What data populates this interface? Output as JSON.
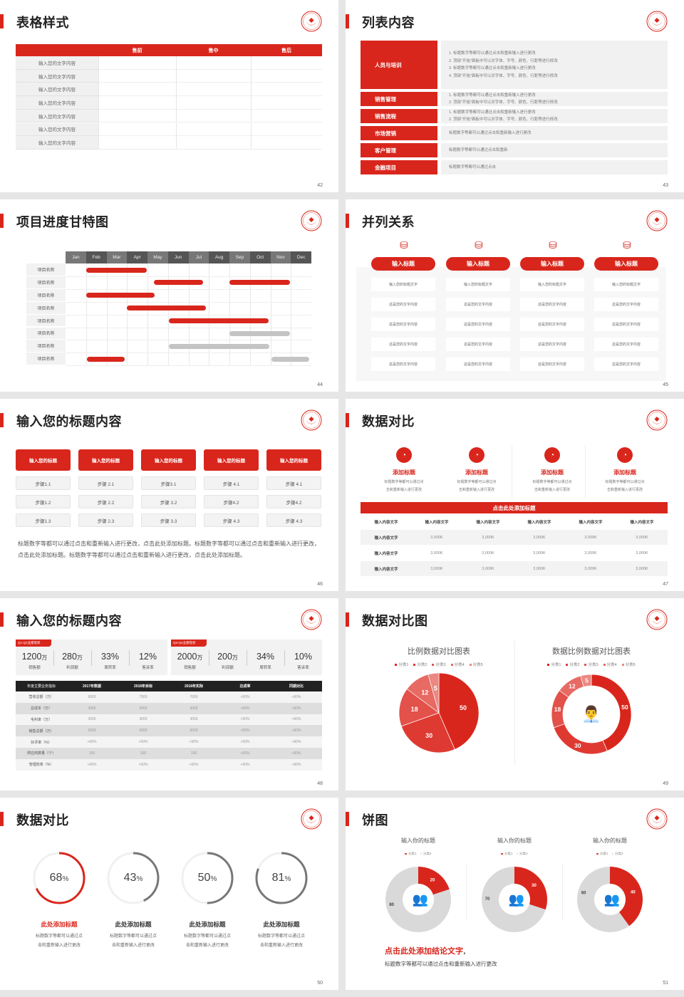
{
  "colors": {
    "accent": "#d9261c",
    "gray": "#c4c4c4",
    "dark": "#222222",
    "ring_gray": "#777777"
  },
  "slides": {
    "s42": {
      "page": "42",
      "title": "表格样式",
      "headers": [
        "",
        "售前",
        "售中",
        "售后"
      ],
      "rows": [
        "输入您的文字内容",
        "输入您的文字内容",
        "输入您的文字内容",
        "输入您的文字内容",
        "输入您的文字内容",
        "输入您的文字内容",
        "输入您的文字内容"
      ]
    },
    "s43": {
      "page": "43",
      "title": "列表内容",
      "items": [
        {
          "label": "人员与培训",
          "icon": "presentation-icon",
          "lines": [
            "1.   标题数字等都可以通过点击和重新输入进行更改",
            "2.   顶部“开始”面板中可以对字体、字号、颜色、行距等进行修改",
            "3.   标题数字等都可以通过点击和重新输入进行更改",
            "4.   顶部“开始”面板中可以对字体、字号、颜色、行距等进行修改"
          ]
        },
        {
          "label": "销售管理",
          "icon": "user-gear-icon",
          "lines": [
            "1.   标题数字等都可以通过点击和重新输入进行更改",
            "2.   顶部“开始”面板中可以对字体、字号、颜色、行距等进行修改"
          ]
        },
        {
          "label": "销售流程",
          "icon": "cycle-icon",
          "lines": [
            "1.   标题数字等都可以通过点击和重新输入进行更改",
            "2.   顶部“开始”面板中可以对字体、字号、颜色、行距等进行修改"
          ]
        },
        {
          "label": "市场营销",
          "icon": "bar-chart-icon",
          "lines": [
            "标题数字等都可以通过点击和重新输入进行更改"
          ]
        },
        {
          "label": "客户管理",
          "icon": "users-icon",
          "lines": [
            "标题数字等都可以通过点击和重新"
          ]
        },
        {
          "label": "金融项目",
          "icon": "money-hand-icon",
          "lines": [
            "标题数字等都可以通过点击"
          ]
        }
      ]
    },
    "s44": {
      "page": "44",
      "title": "项目进度甘特图",
      "months": [
        "Jan",
        "Feb",
        "Mar",
        "Apr",
        "May",
        "Jun",
        "Jul",
        "Aug",
        "Sep",
        "Oct",
        "Nov",
        "Dec"
      ],
      "rows": [
        {
          "name": "项目名称",
          "bars": [
            {
              "start": 1.0,
              "end": 3.95,
              "status": "active"
            }
          ]
        },
        {
          "name": "项目名称",
          "bars": [
            {
              "start": 4.3,
              "end": 6.7,
              "status": "active"
            },
            {
              "start": 8.0,
              "end": 10.95,
              "status": "active"
            }
          ]
        },
        {
          "name": "项目名称",
          "bars": [
            {
              "start": 1.0,
              "end": 4.35,
              "status": "active"
            }
          ]
        },
        {
          "name": "项目名称",
          "bars": [
            {
              "start": 3.0,
              "end": 6.85,
              "status": "active"
            }
          ]
        },
        {
          "name": "项目名称",
          "bars": [
            {
              "start": 5.05,
              "end": 9.9,
              "status": "active"
            }
          ]
        },
        {
          "name": "项目名称",
          "bars": [
            {
              "start": 8.0,
              "end": 10.95,
              "status": "planned"
            }
          ]
        },
        {
          "name": "项目名称",
          "bars": [
            {
              "start": 5.05,
              "end": 9.95,
              "status": "planned"
            }
          ]
        },
        {
          "name": "项目名称",
          "bars": [
            {
              "start": 1.05,
              "end": 2.9,
              "status": "active"
            },
            {
              "start": 10.05,
              "end": 11.9,
              "status": "planned"
            }
          ]
        }
      ]
    },
    "s45": {
      "page": "45",
      "title": "并列关系",
      "columns": [
        {
          "title": "输入标题",
          "cells": [
            "输入您的标题文字",
            "这是您的文字内容",
            "这是您的文字内容",
            "这是您的文字内容",
            "这是您的文字内容"
          ]
        },
        {
          "title": "输入标题",
          "cells": [
            "输入您的标题文字",
            "这是您的文字内容",
            "这是您的文字内容",
            "这是您的文字内容",
            "这是您的文字内容"
          ]
        },
        {
          "title": "输入标题",
          "cells": [
            "输入您的标题文字",
            "这是您的文字内容",
            "这是您的文字内容",
            "这是您的文字内容",
            "这是您的文字内容"
          ]
        },
        {
          "title": "输入标题",
          "cells": [
            "输入您的标题文字",
            "这是您的文字内容",
            "这是您的文字内容",
            "这是您的文字内容",
            "这是您的文字内容"
          ]
        }
      ]
    },
    "s46": {
      "page": "46",
      "title": "输入您的标题内容",
      "columns": [
        {
          "title": "输入您的标题",
          "steps": [
            "步骤1.1",
            "步骤1.2",
            "步骤1.3"
          ]
        },
        {
          "title": "输入您的标题",
          "steps": [
            "步骤 2.1",
            "步骤 2.2",
            "步骤 2.3"
          ]
        },
        {
          "title": "输入您的标题",
          "steps": [
            "步骤3.1",
            "步骤 3.2",
            "步骤 3.3"
          ]
        },
        {
          "title": "输入您的标题",
          "steps": [
            "步骤 4.1",
            "步骤4.2",
            "步骤 4.3"
          ]
        },
        {
          "title": "输入您的标题",
          "steps": [
            "步骤 4.1",
            "步骤4.2",
            "步骤 4.3"
          ]
        }
      ],
      "paragraph": "标题数字等都可以通过点击和重新输入进行更改，点击此处添加标题。标题数字等都可以通过点击和重新输入进行更改，点击此处添加标题。标题数字等都可以通过点击和重新输入进行更改，点击此处添加标题。"
    },
    "s47": {
      "page": "47",
      "title": "数据对比",
      "features": [
        {
          "title": "添加标题",
          "desc": [
            "标题数字等都可以通过点",
            "击和重新输入进行更改"
          ]
        },
        {
          "title": "添加标题",
          "desc": [
            "标题数字等都可以通过点",
            "击和重新输入进行更改"
          ]
        },
        {
          "title": "添加标题",
          "desc": [
            "标题数字等都可以通过点",
            "击和重新输入进行更改"
          ]
        },
        {
          "title": "添加标题",
          "desc": [
            "标题数字等都可以通过点",
            "击和重新输入进行更改"
          ]
        }
      ],
      "banner": "点击此处添加标题",
      "header": [
        "输入内容文字",
        "输入内容文字",
        "输入内容文字",
        "输入内容文字",
        "输入内容文字",
        "输入内容文字"
      ],
      "rows": [
        [
          "输入内容文字",
          "3,000K",
          "3,000K",
          "3,000K",
          "3,000K",
          "3,000K"
        ],
        [
          "输入内容文字",
          "3,000K",
          "3,000K",
          "3,000K",
          "3,000K",
          "3,000K"
        ],
        [
          "输入内容文字",
          "3,000K",
          "3,000K",
          "3,000K",
          "3,000K",
          "3,000K"
        ]
      ]
    },
    "s48": {
      "page": "48",
      "title": "输入您的标题内容",
      "groups": [
        {
          "tag": "Q1-Q2业绩现状",
          "metrics": [
            {
              "value": "1200",
              "unit": "万",
              "label": "销售额"
            },
            {
              "value": "280",
              "unit": "万",
              "label": "利润额"
            },
            {
              "value": "33%",
              "unit": "",
              "label": "周转率"
            },
            {
              "value": "12%",
              "unit": "",
              "label": "客诉率"
            }
          ]
        },
        {
          "tag": "Q3-Q4业绩现状",
          "metrics": [
            {
              "value": "2000",
              "unit": "万",
              "label": "销售额"
            },
            {
              "value": "200",
              "unit": "万",
              "label": "利润额"
            },
            {
              "value": "34%",
              "unit": "",
              "label": "周转率"
            },
            {
              "value": "10%",
              "unit": "",
              "label": "客诉率"
            }
          ]
        }
      ],
      "header": [
        "年度主要业务指标",
        "2017年数据",
        "2018年目标",
        "2018年实际",
        "达成率",
        "同期对比"
      ],
      "rows": [
        [
          "营收总额（万）",
          "6000",
          "7000",
          "7000",
          "+50%",
          "+60%"
        ],
        [
          "总成本（万）",
          "3000",
          "3000",
          "3000",
          "+50%",
          "+60%"
        ],
        [
          "毛利率（万）",
          "3000",
          "3000",
          "3000",
          "+50%",
          "+60%"
        ],
        [
          "销售总额（万）",
          "6000",
          "6000",
          "6000",
          "+50%",
          "+60%"
        ],
        [
          "好评率（%）",
          "+60%",
          "+50%",
          "+60%",
          "+50%",
          "+60%"
        ],
        [
          "供应商数量（个）",
          "100",
          "100",
          "100",
          "+50%",
          "+60%"
        ],
        [
          "管理效率（%）",
          "+60%",
          "+50%",
          "+60%",
          "+50%",
          "+60%"
        ]
      ]
    },
    "s49": {
      "page": "49",
      "title": "数据对比图"
    },
    "s50": {
      "page": "50",
      "title": "数据对比",
      "rings": [
        {
          "value": 68,
          "unit": "%",
          "title": "此处添加标题",
          "highlight": true,
          "desc": [
            "标题数字等都可以通过点",
            "击和重新输入进行更改"
          ]
        },
        {
          "value": 43,
          "unit": "%",
          "title": "此处添加标题",
          "highlight": false,
          "desc": [
            "标题数字等都可以通过点",
            "击和重新输入进行更改"
          ]
        },
        {
          "value": 50,
          "unit": "%",
          "title": "此处添加标题",
          "highlight": false,
          "desc": [
            "标题数字等都可以通过点",
            "击和重新输入进行更改"
          ]
        },
        {
          "value": 81,
          "unit": "%",
          "title": "此处添加标题",
          "highlight": false,
          "desc": [
            "标题数字等都可以通过点",
            "击和重新输入进行更改"
          ]
        }
      ]
    },
    "s51": {
      "page": "51",
      "title": "饼图",
      "conclusion_title": "点击此处添加结论文字",
      "conclusion_punct": "，",
      "conclusion_text": "标题数字等都可以通过点击和重新输入进行更改"
    }
  },
  "chart_data": [
    {
      "type": "pie",
      "title": "比例数据对比图表",
      "categories": [
        "分类1",
        "分类2",
        "分类3",
        "分类4",
        "分类5"
      ],
      "values": [
        50,
        30,
        18,
        12,
        5
      ],
      "legend": "top"
    },
    {
      "type": "pie",
      "variant": "donut",
      "title": "数据比例数据对比图表",
      "categories": [
        "分类1",
        "分类2",
        "分类3",
        "分类4",
        "分类5"
      ],
      "values": [
        50,
        30,
        18,
        12,
        5
      ],
      "legend": "top",
      "center_icon": "customer-service-icon"
    },
    {
      "type": "pie",
      "variant": "donut",
      "title": "输入你的标题",
      "categories": [
        "分类1",
        "分类2"
      ],
      "values": [
        20,
        80
      ],
      "legend": "top",
      "center_icon": "team-icon"
    },
    {
      "type": "pie",
      "variant": "donut",
      "title": "输入你的标题",
      "categories": [
        "分类1",
        "分类2"
      ],
      "values": [
        30,
        70
      ],
      "legend": "top",
      "center_icon": "team-icon"
    },
    {
      "type": "pie",
      "variant": "donut",
      "title": "输入你的标题",
      "categories": [
        "分类1",
        "分类2"
      ],
      "values": [
        40,
        60
      ],
      "legend": "top",
      "center_icon": "team-icon"
    }
  ]
}
